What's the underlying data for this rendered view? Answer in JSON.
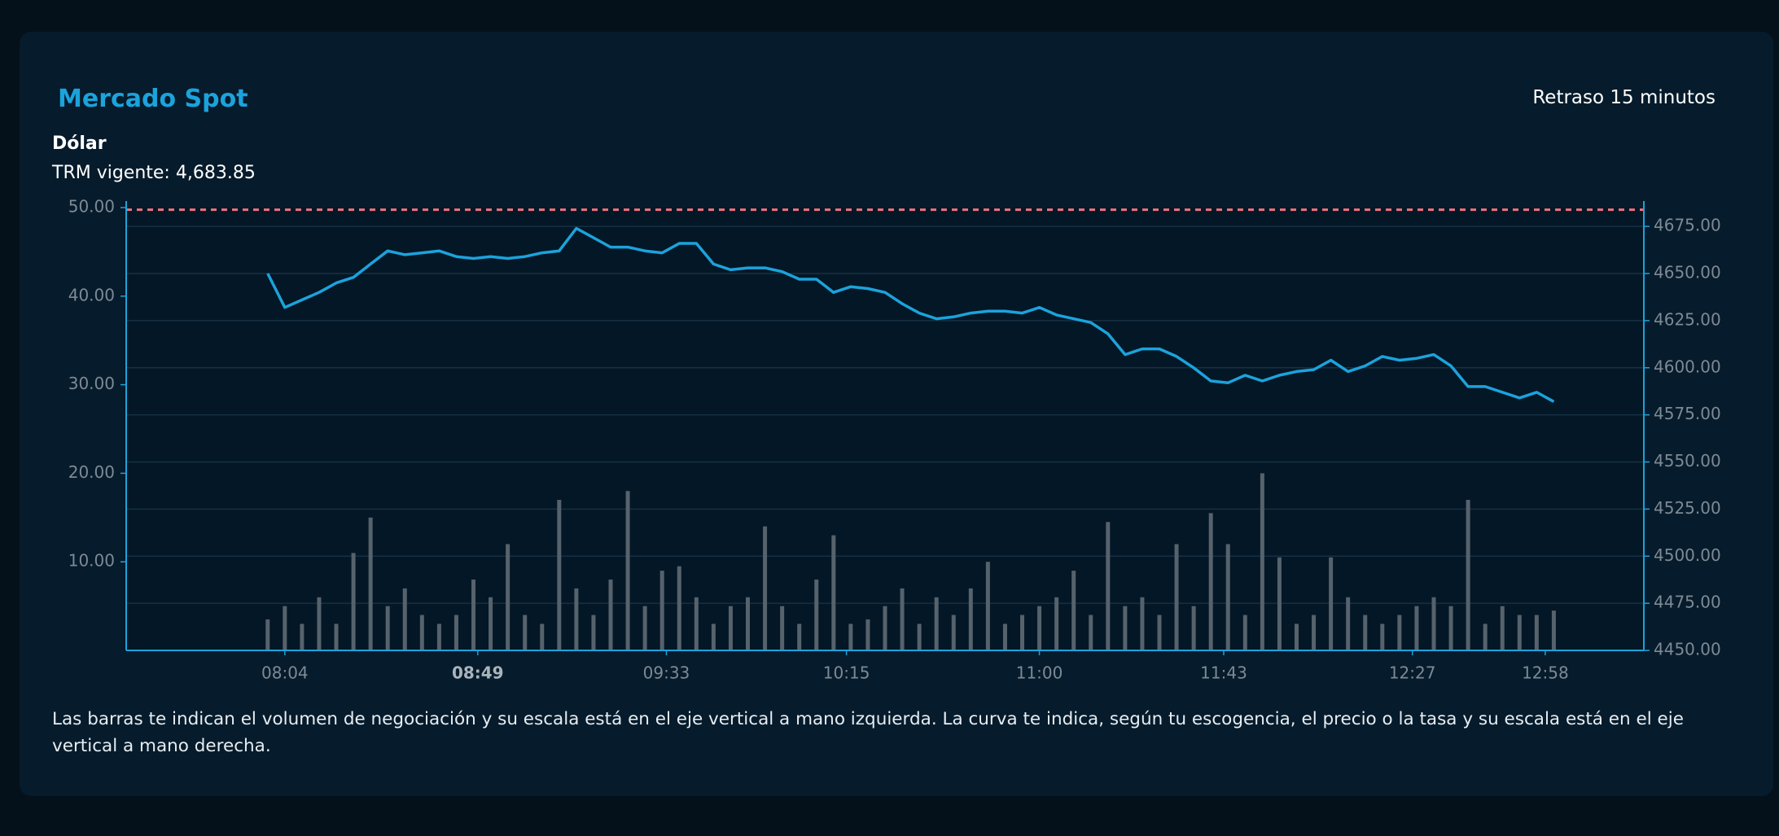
{
  "header": {
    "title": "Mercado Spot",
    "delay": "Retraso 15 minutos",
    "asset": "Dólar",
    "trm_label": "TRM vigente:"
  },
  "footer": {
    "note": "Las barras te indican el volumen de negociación y su escala está en el eje vertical a mano izquierda. La curva te indica, según tu escogencia, el precio o la tasa y su escala está en el eje vertical a mano derecha."
  },
  "chart_data": {
    "type": "combo",
    "x": [
      480,
      484,
      488,
      492,
      496,
      500,
      504,
      508,
      512,
      516,
      520,
      524,
      528,
      532,
      536,
      540,
      544,
      548,
      552,
      556,
      560,
      564,
      568,
      572,
      576,
      580,
      584,
      588,
      592,
      596,
      600,
      604,
      608,
      612,
      616,
      620,
      624,
      628,
      632,
      636,
      640,
      644,
      648,
      652,
      656,
      660,
      664,
      668,
      672,
      676,
      680,
      684,
      688,
      692,
      696,
      700,
      704,
      708,
      712,
      716,
      720,
      724,
      728,
      732,
      736,
      740,
      744,
      748,
      752,
      756,
      760,
      764,
      768,
      772,
      776,
      780
    ],
    "xlim": [
      447,
      801
    ],
    "xticks": [
      {
        "value": 484,
        "label": "08:04"
      },
      {
        "value": 529,
        "label": "08:49"
      },
      {
        "value": 573,
        "label": "09:33"
      },
      {
        "value": 615,
        "label": "10:15"
      },
      {
        "value": 660,
        "label": "11:00"
      },
      {
        "value": 703,
        "label": "11:43"
      },
      {
        "value": 747,
        "label": "12:27"
      },
      {
        "value": 778,
        "label": "12:58"
      }
    ],
    "ylim": [
      0,
      50
    ],
    "yticks": [
      {
        "value": 10,
        "label": "10.00"
      },
      {
        "value": 20,
        "label": "20.00"
      },
      {
        "value": 30,
        "label": "30.00"
      },
      {
        "value": 40,
        "label": "40.00"
      },
      {
        "value": 50,
        "label": "50.00"
      }
    ],
    "y2lim": [
      4450,
      4685
    ],
    "y2ticks": [
      {
        "value": 4450,
        "label": "4450.00"
      },
      {
        "value": 4475,
        "label": "4475.00"
      },
      {
        "value": 4500,
        "label": "4500.00"
      },
      {
        "value": 4525,
        "label": "4525.00"
      },
      {
        "value": 4550,
        "label": "4550.00"
      },
      {
        "value": 4575,
        "label": "4575.00"
      },
      {
        "value": 4600,
        "label": "4600.00"
      },
      {
        "value": 4625,
        "label": "4625.00"
      },
      {
        "value": 4650,
        "label": "4650.00"
      },
      {
        "value": 4675,
        "label": "4675.00"
      }
    ],
    "grid": true,
    "reference_line": {
      "value": 4683.85,
      "label": "4,683.85",
      "color": "#f0737d",
      "axis": "y2"
    },
    "series": [
      {
        "type": "bar",
        "color": "#56626c",
        "values": [
          3.5,
          5,
          3,
          6,
          3,
          11,
          15,
          5,
          7,
          4,
          3,
          4,
          8,
          6,
          12,
          4,
          3,
          17,
          7,
          4,
          8,
          18,
          5,
          9,
          9.5,
          6,
          3,
          5,
          6,
          14,
          5,
          3,
          8,
          13,
          3,
          3.5,
          5,
          7,
          3,
          6,
          4,
          7,
          10,
          3,
          4,
          5,
          6,
          9,
          4,
          14.5,
          5,
          6,
          4,
          12,
          5,
          15.5,
          12,
          4,
          20,
          10.5,
          3,
          4,
          10.5,
          6,
          4,
          3,
          4,
          5,
          6,
          5,
          17,
          3,
          5,
          4,
          4,
          4.5
        ]
      },
      {
        "type": "line",
        "color": "#1ba3dc",
        "axis": "y2",
        "values": [
          4650,
          4632,
          4636,
          4640,
          4645,
          4648,
          4655,
          4662,
          4660,
          4661,
          4662,
          4659,
          4658,
          4659,
          4658,
          4659,
          4661,
          4662,
          4674,
          4669,
          4664,
          4664,
          4662,
          4661,
          4666,
          4666,
          4655,
          4652,
          4653,
          4653,
          4651,
          4647,
          4647,
          4640,
          4643,
          4642,
          4640,
          4634,
          4629,
          4626,
          4627,
          4629,
          4630,
          4630,
          4629,
          4632,
          4628,
          4626,
          4624,
          4618,
          4607,
          4610,
          4610,
          4606,
          4600,
          4593,
          4592,
          4596,
          4593,
          4596,
          4598,
          4599,
          4604,
          4598,
          4601,
          4606,
          4604,
          4605,
          4607,
          4601,
          4590,
          4590,
          4587,
          4584,
          4587,
          4582
        ]
      }
    ]
  }
}
